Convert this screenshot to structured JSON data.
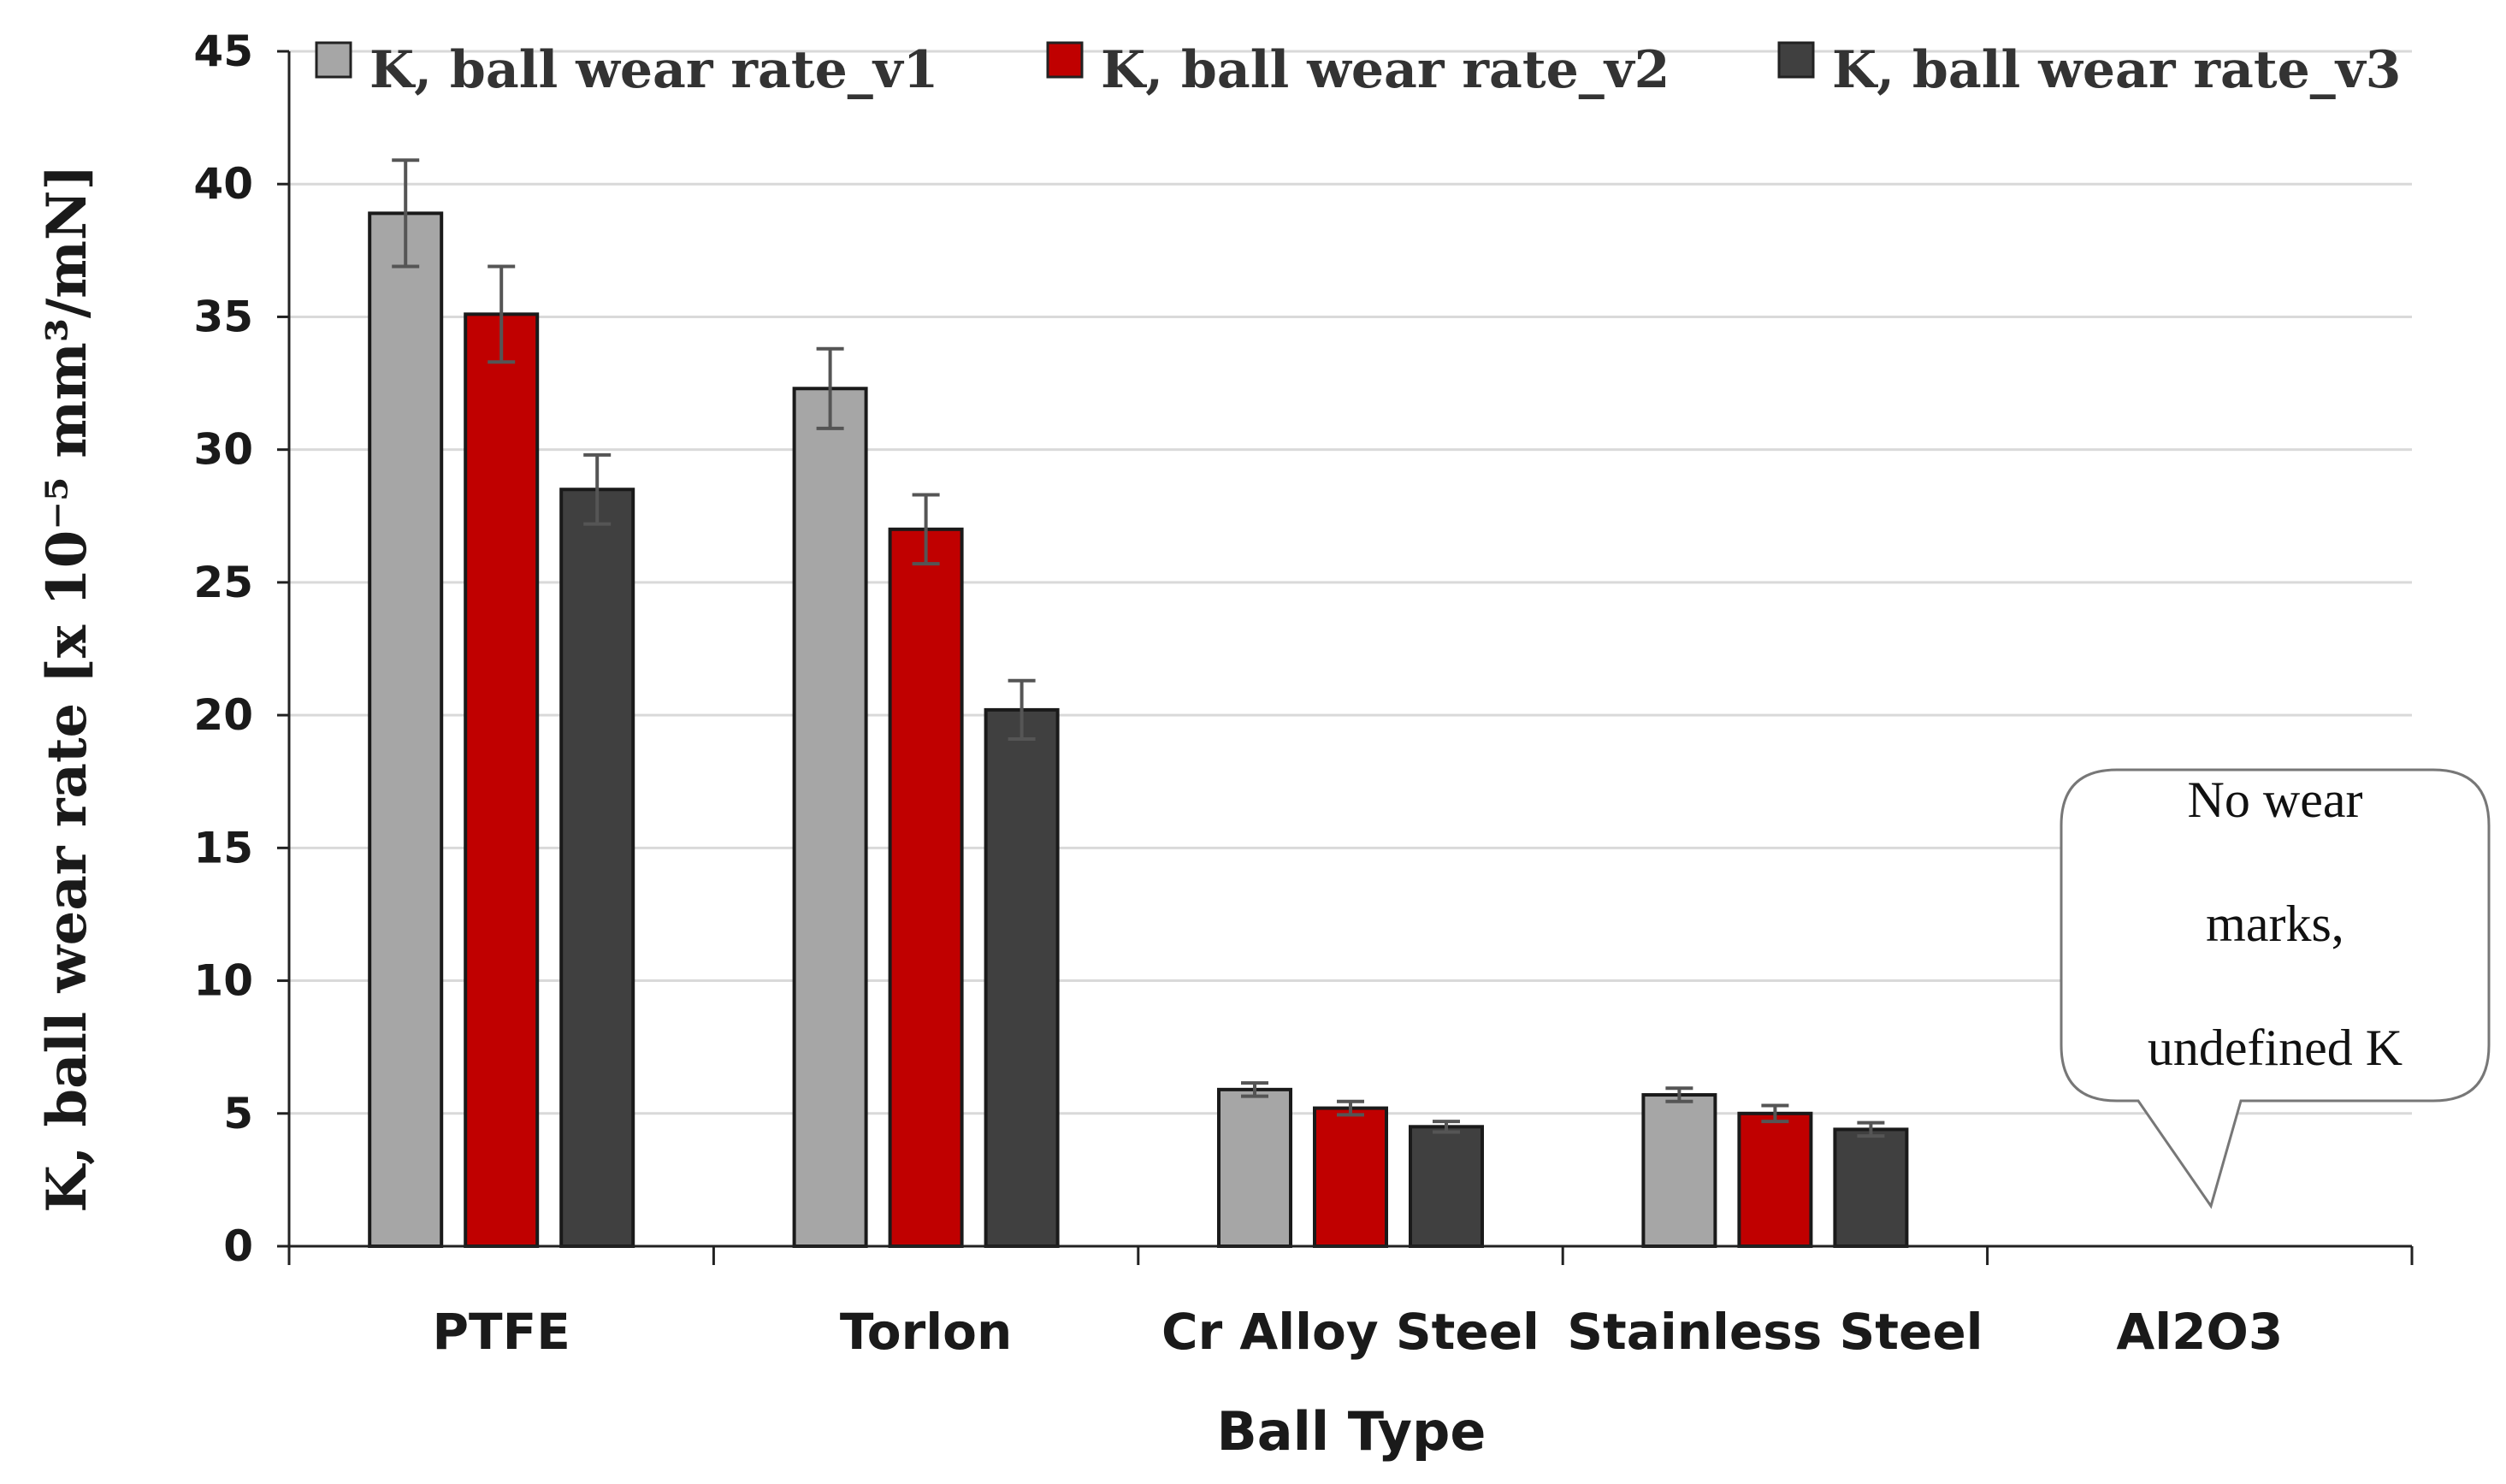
{
  "chart_data": {
    "type": "bar",
    "title": "",
    "xlabel": "Ball Type",
    "ylabel": "K, ball wear rate [x 10⁻⁵ mm³/mN]",
    "ylim": [
      0,
      45
    ],
    "yticks": [
      "0",
      "5",
      "10",
      "15",
      "20",
      "25",
      "30",
      "35",
      "40",
      "45"
    ],
    "grid": "horizontal",
    "legend_position": "top",
    "categories": [
      "PTFE",
      "Torlon",
      "Cr Alloy Steel",
      "Stainless Steel",
      "Al2O3"
    ],
    "series": [
      {
        "name": "K, ball wear rate_v1",
        "color": "#a6a6a6",
        "values": [
          38.9,
          32.3,
          5.9,
          5.7,
          null
        ],
        "errors": [
          2.0,
          1.5,
          0.25,
          0.25,
          null
        ]
      },
      {
        "name": "K, ball wear rate_v2",
        "color": "#c00000",
        "values": [
          35.1,
          27.0,
          5.2,
          5.0,
          null
        ],
        "errors": [
          1.8,
          1.3,
          0.25,
          0.3,
          null
        ]
      },
      {
        "name": "K, ball wear rate_v3",
        "color": "#404040",
        "values": [
          28.5,
          20.2,
          4.5,
          4.4,
          null
        ],
        "errors": [
          1.3,
          1.1,
          0.2,
          0.25,
          null
        ]
      }
    ],
    "annotation": {
      "category": "Al2O3",
      "lines": [
        "No wear",
        "marks,",
        "undefined K"
      ]
    }
  }
}
